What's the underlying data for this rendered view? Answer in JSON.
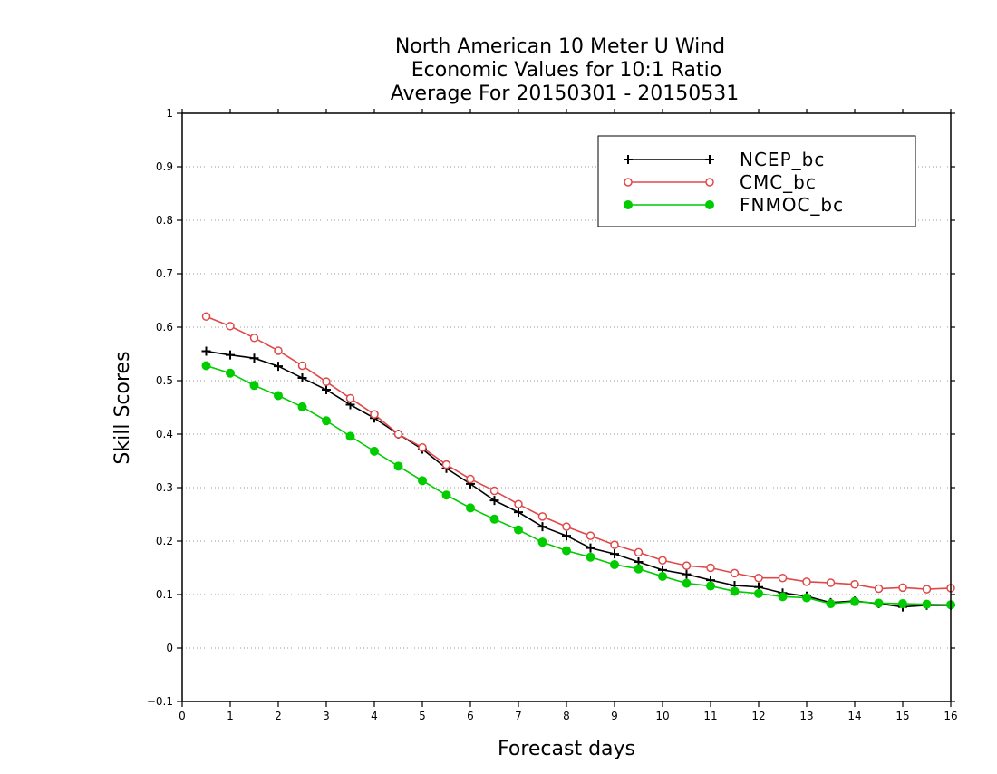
{
  "chart_data": {
    "type": "line",
    "title": [
      "North American 10 Meter U Wind",
      "Economic Values for 10:1 Ratio",
      "Average For 20150301 - 20150531"
    ],
    "xlabel": "Forecast days",
    "ylabel": "Skill Scores",
    "xlim": [
      0,
      16
    ],
    "ylim": [
      -0.1,
      1
    ],
    "x_ticks": [
      "0",
      "1",
      "2",
      "3",
      "4",
      "5",
      "6",
      "7",
      "8",
      "9",
      "10",
      "11",
      "12",
      "13",
      "14",
      "15",
      "16"
    ],
    "y_ticks": [
      "−0.1",
      "0",
      "0.1",
      "0.2",
      "0.3",
      "0.4",
      "0.5",
      "0.6",
      "0.7",
      "0.8",
      "0.9",
      "1"
    ],
    "grid": "horizontal dotted",
    "legend_position": "top-right",
    "x": [
      0.5,
      1,
      1.5,
      2,
      2.5,
      3,
      3.5,
      4,
      4.5,
      5,
      5.5,
      6,
      6.5,
      7,
      7.5,
      8,
      8.5,
      9,
      9.5,
      10,
      10.5,
      11,
      11.5,
      12,
      12.5,
      13,
      13.5,
      14,
      14.5,
      15,
      15.5,
      16
    ],
    "series": [
      {
        "name": "NCEP_bc",
        "color": "#000000",
        "marker": "plus",
        "values": [
          0.555,
          0.548,
          0.542,
          0.527,
          0.505,
          0.483,
          0.455,
          0.43,
          0.4,
          0.372,
          0.336,
          0.307,
          0.276,
          0.254,
          0.227,
          0.21,
          0.187,
          0.176,
          0.161,
          0.146,
          0.138,
          0.127,
          0.117,
          0.114,
          0.103,
          0.097,
          0.085,
          0.088,
          0.083,
          0.077,
          0.08,
          0.08
        ]
      },
      {
        "name": "CMC_bc",
        "color": "#e04848",
        "marker": "open-circle",
        "values": [
          0.62,
          0.602,
          0.58,
          0.556,
          0.528,
          0.498,
          0.467,
          0.437,
          0.4,
          0.375,
          0.343,
          0.316,
          0.294,
          0.269,
          0.246,
          0.227,
          0.21,
          0.193,
          0.179,
          0.164,
          0.154,
          0.15,
          0.14,
          0.131,
          0.131,
          0.124,
          0.122,
          0.119,
          0.111,
          0.113,
          0.11,
          0.112
        ]
      },
      {
        "name": "FNMOC_bc",
        "color": "#00cc00",
        "marker": "filled-circle",
        "values": [
          0.528,
          0.514,
          0.491,
          0.472,
          0.451,
          0.425,
          0.396,
          0.368,
          0.34,
          0.313,
          0.286,
          0.262,
          0.241,
          0.221,
          0.198,
          0.182,
          0.17,
          0.156,
          0.148,
          0.134,
          0.121,
          0.116,
          0.106,
          0.102,
          0.096,
          0.094,
          0.083,
          0.087,
          0.084,
          0.083,
          0.082,
          0.081
        ]
      }
    ]
  }
}
